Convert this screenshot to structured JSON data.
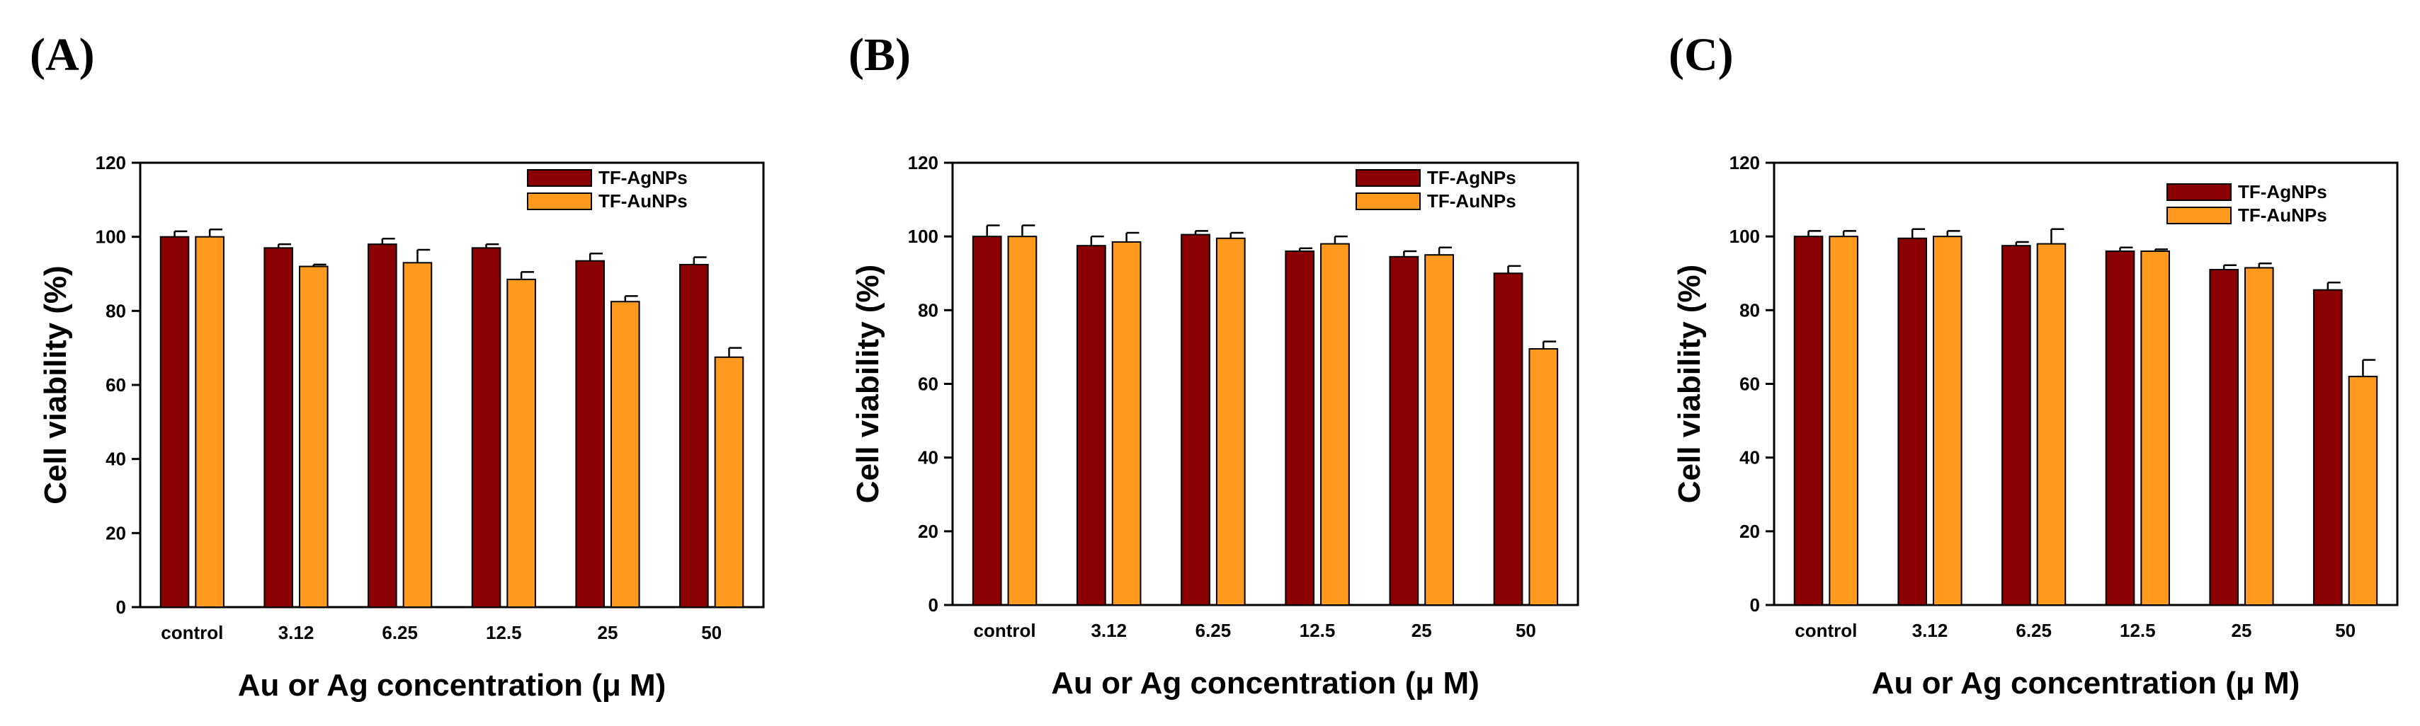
{
  "colors": {
    "agnps": "#8B0000",
    "aunps": "#FF9A1F"
  },
  "chart_data": [
    {
      "panel_label": "(A)",
      "type": "bar",
      "title": "",
      "xlabel": "Au or Ag concentration (μ M)",
      "ylabel": "Cell viability (%)",
      "ylim": [
        0,
        120
      ],
      "yticks": [
        "0",
        "20",
        "40",
        "60",
        "80",
        "100",
        "120"
      ],
      "categories": [
        "control",
        "3.12",
        "6.25",
        "12.5",
        "25",
        "50"
      ],
      "legend_position": "top-right",
      "series": [
        {
          "name": "TF-AgNPs",
          "values": [
            100,
            97,
            98,
            97,
            93.5,
            92.5
          ],
          "errors": [
            1.5,
            1,
            1.5,
            1,
            2,
            2
          ]
        },
        {
          "name": "TF-AuNPs",
          "values": [
            100,
            92,
            93,
            88.5,
            82.5,
            67.5
          ],
          "errors": [
            2,
            0.5,
            3.5,
            2,
            1.5,
            2.5
          ]
        }
      ]
    },
    {
      "panel_label": "(B)",
      "type": "bar",
      "title": "",
      "xlabel": "Au or Ag concentration (μ M)",
      "ylabel": "Cell viability (%)",
      "ylim": [
        0,
        120
      ],
      "yticks": [
        "0",
        "20",
        "40",
        "60",
        "80",
        "100",
        "120"
      ],
      "categories": [
        "control",
        "3.12",
        "6.25",
        "12.5",
        "25",
        "50"
      ],
      "legend_position": "top-right",
      "series": [
        {
          "name": "TF-AgNPs",
          "values": [
            100,
            97.5,
            100.5,
            96,
            94.5,
            90
          ],
          "errors": [
            3,
            2.5,
            1,
            0.8,
            1.5,
            2
          ]
        },
        {
          "name": "TF-AuNPs",
          "values": [
            100,
            98.5,
            99.5,
            98,
            95,
            69.5
          ],
          "errors": [
            3,
            2.5,
            1.5,
            2,
            2,
            2
          ]
        }
      ]
    },
    {
      "panel_label": "(C)",
      "type": "bar",
      "title": "",
      "xlabel": "Au or Ag concentration (μ M)",
      "ylabel": "Cell viability (%)",
      "ylim": [
        0,
        120
      ],
      "yticks": [
        "0",
        "20",
        "40",
        "60",
        "80",
        "100",
        "120"
      ],
      "categories": [
        "control",
        "3.12",
        "6.25",
        "12.5",
        "25",
        "50"
      ],
      "legend_position": "top-right",
      "series": [
        {
          "name": "TF-AgNPs",
          "values": [
            100,
            99.5,
            97.5,
            96,
            91,
            85.5
          ],
          "errors": [
            1.5,
            2.5,
            1,
            1,
            1.2,
            2
          ]
        },
        {
          "name": "TF-AuNPs",
          "values": [
            100,
            100,
            98,
            96,
            91.5,
            62
          ],
          "errors": [
            1.5,
            1.5,
            4,
            0.5,
            1.2,
            4.5
          ]
        }
      ]
    }
  ]
}
